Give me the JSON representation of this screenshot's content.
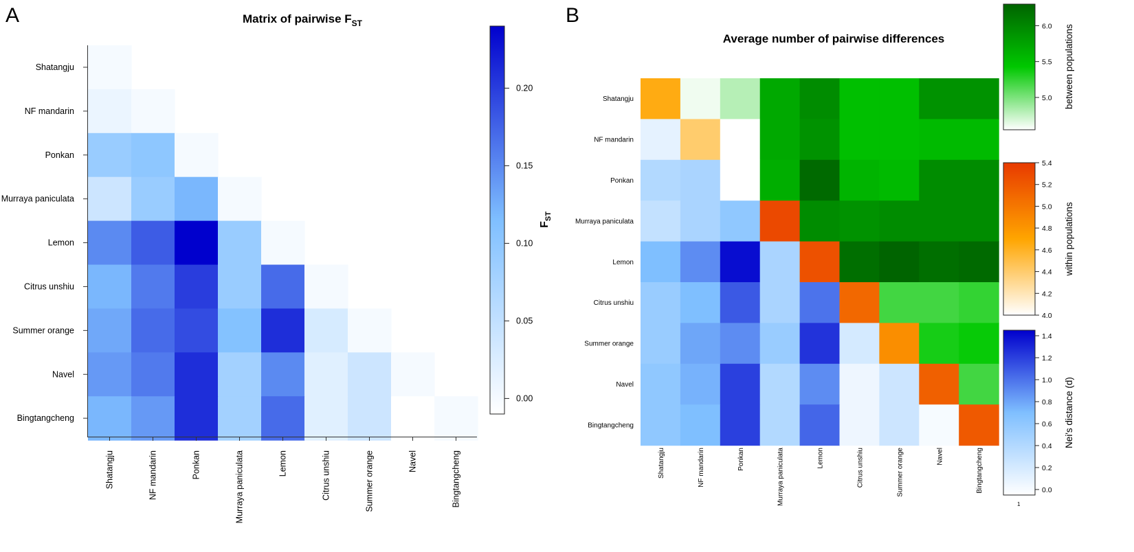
{
  "chart_data": [
    {
      "panel": "A",
      "type": "heatmap",
      "title": "Matrix of pairwise F",
      "title_subscript": "ST",
      "rows": [
        "Shatangju",
        "NF mandarin",
        "Ponkan",
        "Murraya paniculata",
        "Lemon",
        "Citrus unshiu",
        "Summer orange",
        "Navel",
        "Bingtangcheng"
      ],
      "columns": [
        "Shatangju",
        "NF mandarin",
        "Ponkan",
        "Murraya paniculata",
        "Lemon",
        "Citrus unshiu",
        "Summer orange",
        "Navel",
        "Bingtangcheng"
      ],
      "values": [
        [
          0.0,
          null,
          null,
          null,
          null,
          null,
          null,
          null,
          null
        ],
        [
          0.01,
          0.0,
          null,
          null,
          null,
          null,
          null,
          null,
          null
        ],
        [
          0.09,
          0.1,
          0.0,
          null,
          null,
          null,
          null,
          null,
          null
        ],
        [
          0.04,
          0.09,
          0.12,
          0.0,
          null,
          null,
          null,
          null,
          null
        ],
        [
          0.15,
          0.18,
          0.24,
          0.09,
          0.0,
          null,
          null,
          null,
          null
        ],
        [
          0.12,
          0.16,
          0.2,
          0.09,
          0.17,
          0.0,
          null,
          null,
          null
        ],
        [
          0.13,
          0.17,
          0.19,
          0.11,
          0.21,
          0.03,
          0.0,
          null,
          null
        ],
        [
          0.14,
          0.16,
          0.21,
          0.08,
          0.15,
          0.02,
          0.04,
          0.0,
          null
        ],
        [
          0.12,
          0.14,
          0.21,
          0.08,
          0.17,
          0.02,
          0.04,
          -0.01,
          0.0
        ]
      ],
      "colorbar": {
        "label": "F",
        "label_subscript": "ST",
        "ticks": [
          "0.00",
          "0.05",
          "0.10",
          "0.15",
          "0.20"
        ],
        "tick_values": [
          0.0,
          0.05,
          0.1,
          0.15,
          0.2
        ],
        "range": [
          -0.01,
          0.24
        ],
        "colors": [
          "#ffffff",
          "#7fbfff",
          "#0000cd"
        ]
      }
    },
    {
      "panel": "B",
      "type": "heatmap",
      "title": "Average number of pairwise differences",
      "rows": [
        "Shatangju",
        "NF mandarin",
        "Ponkan",
        "Murraya paniculata",
        "Lemon",
        "Citrus unshiu",
        "Summer orange",
        "Navel",
        "Bingtangcheng"
      ],
      "columns": [
        "Shatangju",
        "NF mandarin",
        "Ponkan",
        "Murraya paniculata",
        "Lemon",
        "Citrus unshiu",
        "Summer orange",
        "Navel",
        "Bingtangcheng"
      ],
      "diagonal_within": [
        4.65,
        4.4,
        4.0,
        5.3,
        5.25,
        5.1,
        4.85,
        5.15,
        5.2
      ],
      "upper_between": [
        [
          null,
          4.6,
          4.8,
          5.7,
          5.95,
          5.5,
          5.5,
          5.9,
          5.9
        ],
        [
          null,
          null,
          4.45,
          5.7,
          5.9,
          5.5,
          5.5,
          5.55,
          5.55
        ],
        [
          null,
          null,
          null,
          5.65,
          6.25,
          5.6,
          5.55,
          5.95,
          5.95
        ],
        [
          null,
          null,
          null,
          null,
          5.95,
          5.9,
          5.95,
          5.95,
          5.95
        ],
        [
          null,
          null,
          null,
          null,
          null,
          6.2,
          6.3,
          6.2,
          6.25
        ],
        [
          null,
          null,
          null,
          null,
          null,
          null,
          5.2,
          5.2,
          5.25
        ],
        [
          null,
          null,
          null,
          null,
          null,
          null,
          null,
          5.35,
          5.4
        ],
        [
          null,
          null,
          null,
          null,
          null,
          null,
          null,
          null,
          5.2
        ],
        [
          null,
          null,
          null,
          null,
          null,
          null,
          null,
          null,
          null
        ]
      ],
      "lower_nei": [
        [
          null,
          null,
          null,
          null,
          null,
          null,
          null,
          null,
          null
        ],
        [
          0.1,
          null,
          null,
          null,
          null,
          null,
          null,
          null,
          null
        ],
        [
          0.4,
          0.45,
          null,
          null,
          null,
          null,
          null,
          null,
          null
        ],
        [
          0.3,
          0.45,
          0.6,
          null,
          null,
          null,
          null,
          null,
          null
        ],
        [
          0.7,
          0.9,
          1.4,
          0.45,
          null,
          null,
          null,
          null,
          null
        ],
        [
          0.55,
          0.7,
          1.1,
          0.45,
          1.0,
          null,
          null,
          null,
          null
        ],
        [
          0.55,
          0.8,
          0.9,
          0.55,
          1.25,
          0.2,
          null,
          null,
          null
        ],
        [
          0.6,
          0.75,
          1.2,
          0.4,
          0.9,
          0.05,
          0.25,
          null,
          null
        ],
        [
          0.6,
          0.7,
          1.2,
          0.4,
          1.05,
          0.05,
          0.25,
          0.0,
          null
        ]
      ],
      "legends": [
        {
          "label": "between populations",
          "ticks": [
            "5.0",
            "5.5",
            "6.0"
          ],
          "tick_values": [
            5.0,
            5.5,
            6.0
          ],
          "range": [
            4.55,
            6.3
          ],
          "colors": [
            "#ffffff",
            "#00c800",
            "#006400"
          ]
        },
        {
          "label": "within populations",
          "ticks": [
            "4.0",
            "4.2",
            "4.4",
            "4.6",
            "4.8",
            "5.0",
            "5.2",
            "5.4"
          ],
          "tick_values": [
            4.0,
            4.2,
            4.4,
            4.6,
            4.8,
            5.0,
            5.2,
            5.4
          ],
          "range": [
            4.0,
            5.4
          ],
          "colors": [
            "#ffffff",
            "#ffa500",
            "#e83a00"
          ]
        },
        {
          "label": "Nei's distance (d)",
          "ticks": [
            "0.0",
            "0.2",
            "0.4",
            "0.6",
            "0.8",
            "1.0",
            "1.2",
            "1.4"
          ],
          "tick_values": [
            0.0,
            0.2,
            0.4,
            0.6,
            0.8,
            1.0,
            1.2,
            1.4
          ],
          "range": [
            -0.05,
            1.45
          ],
          "colors": [
            "#ffffff",
            "#7fbfff",
            "#0000cd"
          ]
        }
      ],
      "stray_mark": "1"
    }
  ]
}
